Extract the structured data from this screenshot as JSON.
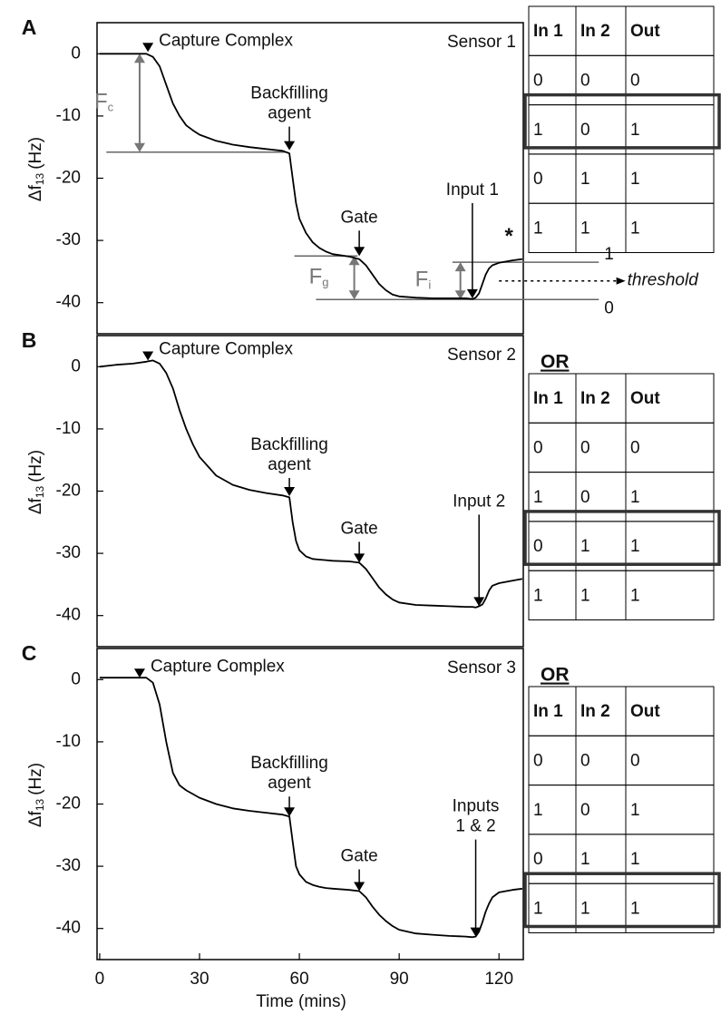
{
  "chart_data": [
    {
      "type": "line",
      "panel": "A",
      "sensor": "Sensor 1",
      "ylabel": "Δf",
      "ylabel_sub": "13",
      "ylabel_unit": "(Hz)",
      "xlim": [
        -0.8,
        127.3
      ],
      "ylim": [
        -45,
        5
      ],
      "yticks": [
        0,
        -10,
        -20,
        -30,
        -40
      ],
      "color": "#000000",
      "x": [
        0,
        5,
        10,
        14,
        16,
        18,
        20,
        22,
        24,
        26,
        28,
        30,
        35,
        40,
        45,
        50,
        55,
        57,
        58,
        59,
        60,
        62,
        64,
        66,
        68,
        70,
        75,
        78,
        80,
        82,
        84,
        86,
        88,
        90,
        95,
        100,
        105,
        110,
        112,
        113,
        114,
        115,
        116,
        117,
        118,
        120,
        124,
        127
      ],
      "values": [
        0,
        0,
        0,
        0,
        -0.5,
        -2,
        -5,
        -8,
        -10,
        -11.5,
        -12.3,
        -13,
        -14,
        -14.6,
        -15,
        -15.3,
        -15.6,
        -16,
        -20,
        -24,
        -26.5,
        -28.8,
        -30.3,
        -31.2,
        -31.8,
        -32.2,
        -32.6,
        -33,
        -34,
        -35.5,
        -37,
        -38,
        -38.7,
        -39,
        -39.2,
        -39.3,
        -39.3,
        -39.3,
        -39.4,
        -39.2,
        -38.5,
        -37,
        -35.5,
        -34.5,
        -34,
        -33.6,
        -33.2,
        -33.0
      ],
      "annotations": [
        {
          "text": [
            "Capture Complex"
          ],
          "x": 14.5,
          "y": 0.3
        },
        {
          "text": [
            "Backfilling",
            "agent"
          ],
          "x": 57,
          "y": -15.5
        },
        {
          "text": [
            "Gate"
          ],
          "x": 78,
          "y": -32.5
        },
        {
          "text": [
            "Input 1"
          ],
          "x": 112,
          "y": -39.3
        }
      ],
      "measures": [
        {
          "label": "F",
          "sub": "c",
          "x": 12,
          "from": 0,
          "to": -15.8
        },
        {
          "label": "F",
          "sub": "g",
          "x": 76.5,
          "from": -32.5,
          "to": -39.5
        },
        {
          "label": "F",
          "sub": "i",
          "x": 108.4,
          "from": -33.5,
          "to": -39.5
        }
      ],
      "guides": [
        {
          "value": -15.8,
          "x": [
            2,
            56
          ]
        },
        {
          "value": -32.5,
          "x": [
            58.5,
            77.5
          ]
        },
        {
          "value": -33.5,
          "x": [
            106,
            150
          ],
          "label": "1"
        },
        {
          "value": -39.5,
          "x": [
            65,
            150
          ],
          "label": "0"
        }
      ],
      "threshold": {
        "label": "threshold",
        "value": -36.5,
        "x": [
          120,
          158
        ]
      },
      "note": {
        "text": "*",
        "x": 123,
        "y": -29.5
      },
      "table": {
        "header": [
          "In 1",
          "In 2",
          "Out"
        ],
        "rows": [
          [
            0,
            0,
            0
          ],
          [
            1,
            0,
            1
          ],
          [
            0,
            1,
            1
          ],
          [
            1,
            1,
            1
          ]
        ],
        "highlight": 1
      }
    },
    {
      "type": "line",
      "panel": "B",
      "sensor": "Sensor 2",
      "ylabel": "Δf",
      "ylabel_sub": "13",
      "ylabel_unit": "(Hz)",
      "xlim": [
        -0.8,
        127.3
      ],
      "ylim": [
        -45,
        5
      ],
      "yticks": [
        0,
        -10,
        -20,
        -30,
        -40
      ],
      "color": "#000000",
      "x": [
        0,
        5,
        10,
        14,
        16,
        18,
        20,
        22,
        24,
        26,
        28,
        30,
        35,
        40,
        45,
        50,
        55,
        57,
        58,
        59,
        60,
        62,
        64,
        66,
        68,
        70,
        75,
        78,
        80,
        82,
        84,
        86,
        88,
        90,
        95,
        100,
        105,
        110,
        112,
        113,
        114,
        115,
        116,
        117,
        118,
        120,
        124,
        127
      ],
      "values": [
        0,
        0.3,
        0.5,
        0.8,
        1,
        0.5,
        -1,
        -3.5,
        -7,
        -10,
        -12.5,
        -14.5,
        -17.5,
        -19,
        -19.8,
        -20.3,
        -20.7,
        -21,
        -25,
        -28,
        -29.5,
        -30.5,
        -30.9,
        -31,
        -31.1,
        -31.2,
        -31.3,
        -31.5,
        -32.5,
        -34,
        -35.5,
        -36.6,
        -37.4,
        -37.9,
        -38.3,
        -38.4,
        -38.5,
        -38.6,
        -38.6,
        -38.7,
        -38.5,
        -38.2,
        -37.3,
        -36,
        -35.2,
        -34.8,
        -34.4,
        -34.1
      ],
      "annotations": [
        {
          "text": [
            "Capture Complex"
          ],
          "x": 14.5,
          "y": 1
        },
        {
          "text": [
            "Backfilling",
            "agent"
          ],
          "x": 57,
          "y": -20.8
        },
        {
          "text": [
            "Gate"
          ],
          "x": 78,
          "y": -31.5
        },
        {
          "text": [
            "Input 2"
          ],
          "x": 114,
          "y": -38.5
        }
      ],
      "table": {
        "title": "OR",
        "header": [
          "In 1",
          "In 2",
          "Out"
        ],
        "rows": [
          [
            0,
            0,
            0
          ],
          [
            1,
            0,
            1
          ],
          [
            0,
            1,
            1
          ],
          [
            1,
            1,
            1
          ]
        ],
        "highlight": 2
      }
    },
    {
      "type": "line",
      "panel": "C",
      "sensor": "Sensor 3",
      "ylabel": "Δf",
      "ylabel_sub": "13",
      "ylabel_unit": "(Hz)",
      "xlabel": "Time (mins)",
      "xlim": [
        -0.8,
        127.3
      ],
      "ylim": [
        -45,
        5
      ],
      "yticks": [
        0,
        -10,
        -20,
        -30,
        -40
      ],
      "xticks": [
        0,
        30,
        60,
        90,
        120
      ],
      "color": "#000000",
      "x": [
        0,
        5,
        10,
        14,
        16,
        18,
        20,
        22,
        24,
        26,
        28,
        30,
        35,
        40,
        45,
        50,
        55,
        57,
        58,
        59,
        60,
        62,
        64,
        66,
        68,
        70,
        75,
        78,
        80,
        82,
        84,
        86,
        88,
        90,
        95,
        100,
        105,
        110,
        112,
        113,
        114,
        115,
        116,
        117,
        118,
        120,
        124,
        127
      ],
      "values": [
        0.3,
        0.3,
        0.3,
        0.3,
        -0.5,
        -4,
        -10,
        -15,
        -17,
        -17.8,
        -18.4,
        -19,
        -20,
        -20.7,
        -21.1,
        -21.4,
        -21.7,
        -22,
        -26,
        -30,
        -31.3,
        -32.5,
        -33,
        -33.3,
        -33.5,
        -33.6,
        -33.8,
        -34,
        -35,
        -36.5,
        -37.8,
        -38.8,
        -39.6,
        -40.2,
        -40.8,
        -41,
        -41.2,
        -41.3,
        -41.4,
        -41.3,
        -40.5,
        -39,
        -37.3,
        -36,
        -35,
        -34.2,
        -33.8,
        -33.6
      ],
      "annotations": [
        {
          "text": [
            "Capture Complex"
          ],
          "x": 12,
          "y": 0.3
        },
        {
          "text": [
            "Backfilling",
            "agent"
          ],
          "x": 57,
          "y": -22
        },
        {
          "text": [
            "Gate"
          ],
          "x": 78,
          "y": -34
        },
        {
          "text": [
            "Inputs",
            "1 & 2"
          ],
          "x": 113,
          "y": -41.3
        }
      ],
      "table": {
        "title": "OR",
        "header": [
          "In 1",
          "In 2",
          "Out"
        ],
        "rows": [
          [
            0,
            0,
            0
          ],
          [
            1,
            0,
            1
          ],
          [
            0,
            1,
            1
          ],
          [
            1,
            1,
            1
          ]
        ],
        "highlight": 3
      }
    }
  ]
}
